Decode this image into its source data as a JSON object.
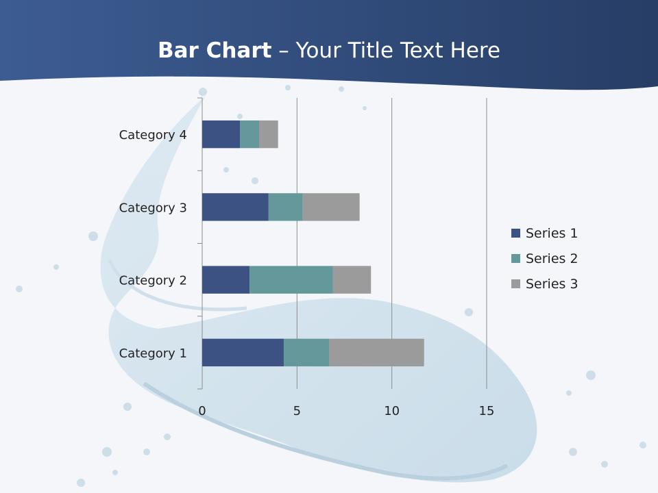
{
  "slide": {
    "title_bold": "Bar Chart",
    "title_rest": " – Your Title Text Here"
  },
  "colors": {
    "header": "#2f4a78",
    "series_1": "#3b5282",
    "series_2": "#64989a",
    "series_3": "#9b9b9b",
    "grid": "#8c8c8c"
  },
  "chart_data": {
    "type": "bar",
    "orientation": "horizontal",
    "stacked": true,
    "categories": [
      "Category 1",
      "Category 2",
      "Category 3",
      "Category 4"
    ],
    "series": [
      {
        "name": "Series 1",
        "values": [
          4.3,
          2.5,
          3.5,
          2.0
        ]
      },
      {
        "name": "Series 2",
        "values": [
          2.4,
          4.4,
          1.8,
          1.0
        ]
      },
      {
        "name": "Series 3",
        "values": [
          5.0,
          2.0,
          3.0,
          1.0
        ]
      }
    ],
    "xlim": [
      0,
      15
    ],
    "x_ticks": [
      0,
      5,
      10,
      15
    ],
    "grid": true,
    "legend": "right"
  }
}
